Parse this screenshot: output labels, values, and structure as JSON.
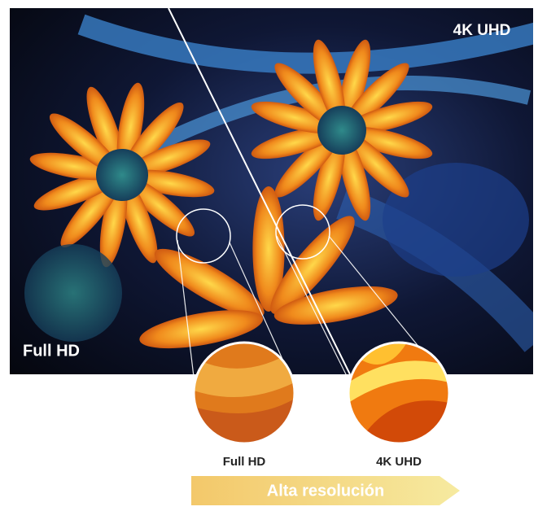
{
  "photo": {
    "label_top": "4K UHD",
    "label_bottom": "Full HD"
  },
  "comparison": {
    "items": [
      {
        "label": "Full HD"
      },
      {
        "label": "4K UHD"
      }
    ],
    "banner": "Alta resolución"
  }
}
